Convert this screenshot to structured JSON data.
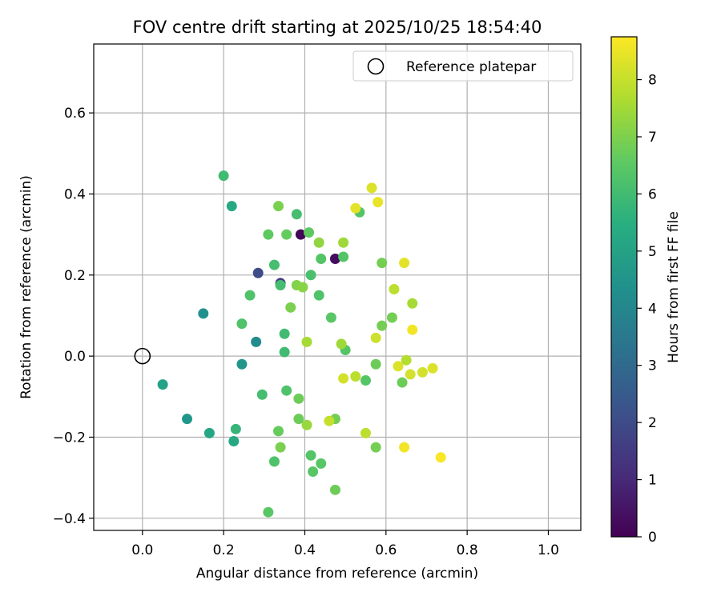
{
  "chart_data": {
    "type": "scatter",
    "title": "FOV centre drift starting at 2025/10/25 18:54:40",
    "xlabel": "Angular distance from reference (arcmin)",
    "ylabel": "Rotation from reference (arcmin)",
    "xlim": [
      -0.12,
      1.08
    ],
    "ylim": [
      -0.43,
      0.77
    ],
    "xticks": [
      0.0,
      0.2,
      0.4,
      0.6,
      0.8,
      1.0
    ],
    "xtick_labels": [
      "0.0",
      "0.2",
      "0.4",
      "0.6",
      "0.8",
      "1.0"
    ],
    "yticks": [
      -0.4,
      -0.2,
      0.0,
      0.2,
      0.4,
      0.6
    ],
    "ytick_labels": [
      "−0.4",
      "−0.2",
      "0.0",
      "0.2",
      "0.4",
      "0.6"
    ],
    "grid": true,
    "legend": {
      "position": "top-right",
      "label": "Reference platepar"
    },
    "reference": {
      "x": 0.0,
      "y": 0.0
    },
    "colorbar": {
      "label": "Hours from first FF file",
      "range": [
        0,
        8.75
      ],
      "ticks": [
        0,
        1,
        2,
        3,
        4,
        5,
        6,
        7,
        8
      ],
      "tick_labels": [
        "0",
        "1",
        "2",
        "3",
        "4",
        "5",
        "6",
        "7",
        "8"
      ],
      "colormap": "viridis"
    },
    "points": [
      {
        "x": 0.39,
        "y": 0.3,
        "h": 0.1
      },
      {
        "x": 0.475,
        "y": 0.24,
        "h": 0.3
      },
      {
        "x": 0.34,
        "y": 0.18,
        "h": 1.5
      },
      {
        "x": 0.285,
        "y": 0.205,
        "h": 2.0
      },
      {
        "x": 0.28,
        "y": 0.035,
        "h": 4.2
      },
      {
        "x": 0.15,
        "y": 0.105,
        "h": 4.4
      },
      {
        "x": 0.245,
        "y": -0.02,
        "h": 4.6
      },
      {
        "x": 0.11,
        "y": -0.155,
        "h": 4.6
      },
      {
        "x": 0.05,
        "y": -0.07,
        "h": 5.0
      },
      {
        "x": 0.165,
        "y": -0.19,
        "h": 5.2
      },
      {
        "x": 0.225,
        "y": -0.21,
        "h": 5.3
      },
      {
        "x": 0.22,
        "y": 0.37,
        "h": 5.3
      },
      {
        "x": 0.23,
        "y": -0.18,
        "h": 5.8
      },
      {
        "x": 0.2,
        "y": 0.445,
        "h": 6.0
      },
      {
        "x": 0.35,
        "y": 0.055,
        "h": 6.0
      },
      {
        "x": 0.35,
        "y": 0.01,
        "h": 6.0
      },
      {
        "x": 0.295,
        "y": -0.095,
        "h": 6.1
      },
      {
        "x": 0.325,
        "y": 0.225,
        "h": 6.1
      },
      {
        "x": 0.34,
        "y": 0.175,
        "h": 6.1
      },
      {
        "x": 0.38,
        "y": 0.35,
        "h": 6.1
      },
      {
        "x": 0.415,
        "y": 0.2,
        "h": 6.2
      },
      {
        "x": 0.435,
        "y": 0.15,
        "h": 6.3
      },
      {
        "x": 0.245,
        "y": 0.08,
        "h": 6.3
      },
      {
        "x": 0.265,
        "y": 0.15,
        "h": 6.3
      },
      {
        "x": 0.355,
        "y": -0.085,
        "h": 6.3
      },
      {
        "x": 0.325,
        "y": -0.26,
        "h": 6.3
      },
      {
        "x": 0.44,
        "y": 0.24,
        "h": 6.4
      },
      {
        "x": 0.535,
        "y": 0.355,
        "h": 6.4
      },
      {
        "x": 0.495,
        "y": 0.245,
        "h": 6.4
      },
      {
        "x": 0.5,
        "y": 0.015,
        "h": 6.4
      },
      {
        "x": 0.55,
        "y": -0.06,
        "h": 6.4
      },
      {
        "x": 0.415,
        "y": -0.245,
        "h": 6.4
      },
      {
        "x": 0.44,
        "y": -0.265,
        "h": 6.5
      },
      {
        "x": 0.42,
        "y": -0.285,
        "h": 6.5
      },
      {
        "x": 0.31,
        "y": -0.385,
        "h": 6.5
      },
      {
        "x": 0.465,
        "y": 0.095,
        "h": 6.5
      },
      {
        "x": 0.31,
        "y": 0.3,
        "h": 6.6
      },
      {
        "x": 0.41,
        "y": 0.305,
        "h": 6.6
      },
      {
        "x": 0.355,
        "y": 0.3,
        "h": 6.7
      },
      {
        "x": 0.335,
        "y": -0.185,
        "h": 6.7
      },
      {
        "x": 0.385,
        "y": -0.105,
        "h": 6.8
      },
      {
        "x": 0.385,
        "y": -0.155,
        "h": 6.8
      },
      {
        "x": 0.475,
        "y": -0.33,
        "h": 6.8
      },
      {
        "x": 0.575,
        "y": -0.02,
        "h": 6.8
      },
      {
        "x": 0.64,
        "y": -0.065,
        "h": 6.8
      },
      {
        "x": 0.615,
        "y": 0.095,
        "h": 6.9
      },
      {
        "x": 0.59,
        "y": 0.075,
        "h": 6.9
      },
      {
        "x": 0.59,
        "y": 0.23,
        "h": 6.9
      },
      {
        "x": 0.475,
        "y": -0.155,
        "h": 6.9
      },
      {
        "x": 0.575,
        "y": -0.225,
        "h": 6.9
      },
      {
        "x": 0.34,
        "y": -0.225,
        "h": 7.0
      },
      {
        "x": 0.335,
        "y": 0.37,
        "h": 7.0
      },
      {
        "x": 0.365,
        "y": 0.12,
        "h": 7.0
      },
      {
        "x": 0.38,
        "y": 0.175,
        "h": 7.1
      },
      {
        "x": 0.395,
        "y": 0.17,
        "h": 7.2
      },
      {
        "x": 0.435,
        "y": 0.28,
        "h": 7.3
      },
      {
        "x": 0.405,
        "y": -0.17,
        "h": 7.4
      },
      {
        "x": 0.49,
        "y": 0.03,
        "h": 7.5
      },
      {
        "x": 0.495,
        "y": 0.28,
        "h": 7.5
      },
      {
        "x": 0.405,
        "y": 0.035,
        "h": 7.6
      },
      {
        "x": 0.665,
        "y": 0.13,
        "h": 7.6
      },
      {
        "x": 0.65,
        "y": -0.01,
        "h": 7.8
      },
      {
        "x": 0.55,
        "y": -0.19,
        "h": 7.9
      },
      {
        "x": 0.525,
        "y": -0.05,
        "h": 7.9
      },
      {
        "x": 0.62,
        "y": 0.165,
        "h": 7.9
      },
      {
        "x": 0.46,
        "y": -0.16,
        "h": 8.0
      },
      {
        "x": 0.575,
        "y": 0.045,
        "h": 8.1
      },
      {
        "x": 0.66,
        "y": -0.045,
        "h": 8.2
      },
      {
        "x": 0.69,
        "y": -0.04,
        "h": 8.2
      },
      {
        "x": 0.495,
        "y": -0.055,
        "h": 8.2
      },
      {
        "x": 0.63,
        "y": -0.025,
        "h": 8.3
      },
      {
        "x": 0.715,
        "y": -0.03,
        "h": 8.3
      },
      {
        "x": 0.565,
        "y": 0.415,
        "h": 8.3
      },
      {
        "x": 0.525,
        "y": 0.365,
        "h": 8.4
      },
      {
        "x": 0.645,
        "y": 0.23,
        "h": 8.4
      },
      {
        "x": 0.58,
        "y": 0.38,
        "h": 8.5
      },
      {
        "x": 0.645,
        "y": -0.225,
        "h": 8.6
      },
      {
        "x": 0.665,
        "y": 0.065,
        "h": 8.6
      },
      {
        "x": 0.735,
        "y": -0.25,
        "h": 8.7
      }
    ]
  }
}
